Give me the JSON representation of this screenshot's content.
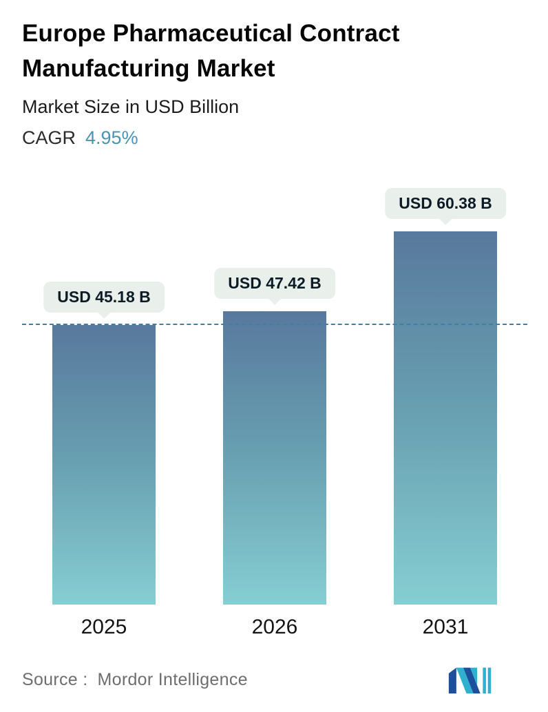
{
  "header": {
    "title": "Europe Pharmaceutical Contract Manufacturing Market",
    "subtitle": "Market Size in USD Billion",
    "cagr_label": "CAGR",
    "cagr_value": "4.95%"
  },
  "chart_data": {
    "type": "bar",
    "title": "Europe Pharmaceutical Contract Manufacturing Market",
    "ylabel": "Market Size in USD Billion",
    "xlabel": "",
    "categories": [
      "2025",
      "2026",
      "2031"
    ],
    "values": [
      45.18,
      47.42,
      60.38
    ],
    "value_labels": [
      "USD 45.18 B",
      "USD 47.42 B",
      "USD 60.38 B"
    ],
    "cagr_percent": 4.95,
    "ylim": [
      0,
      68
    ],
    "grid": false,
    "legend": "none",
    "reference_line_value": 45.18,
    "colors": {
      "bar_gradient_top": "#58799d",
      "bar_gradient_bottom": "#86ced2",
      "reference_line": "#3f7fa6",
      "callout_background": "#e9efeb",
      "cagr_accent": "#4b93b4"
    }
  },
  "footer": {
    "source_label": "Source :",
    "source_value": "Mordor Intelligence",
    "logo": "mordor-intelligence-logo"
  }
}
